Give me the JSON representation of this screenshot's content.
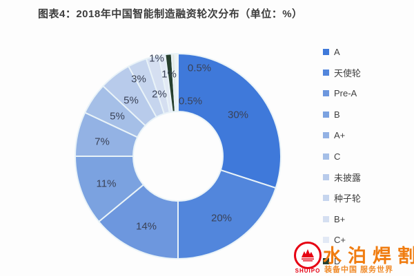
{
  "title": "图表4：2018年中国智能制造融资轮次分布（单位：%）",
  "chart_data": {
    "type": "pie",
    "title": "2018年中国智能制造融资轮次分布",
    "unit": "%",
    "donut": true,
    "start_angle_deg": 0,
    "direction": "clockwise",
    "legend_position": "right",
    "slices": [
      {
        "label": "A",
        "value": 30,
        "display": "30%",
        "color": "#3f79da",
        "label_x": 345,
        "label_y": 167
      },
      {
        "label": "天使轮",
        "value": 20,
        "display": "20%",
        "color": "#5286dc",
        "label_x": 321,
        "label_y": 317
      },
      {
        "label": "Pre-A",
        "value": 14,
        "display": "14%",
        "color": "#6d97de",
        "label_x": 212,
        "label_y": 329
      },
      {
        "label": "B",
        "value": 11,
        "display": "11%",
        "color": "#7ba2e0",
        "label_x": 154,
        "label_y": 267
      },
      {
        "label": "A+",
        "value": 7,
        "display": "7%",
        "color": "#93b2e4",
        "label_x": 148,
        "label_y": 206
      },
      {
        "label": "C",
        "value": 5,
        "display": "5%",
        "color": "#a5bfe7",
        "label_x": 170,
        "label_y": 169
      },
      {
        "label": "未披露",
        "value": 5,
        "display": "5%",
        "color": "#b8cbeb",
        "label_x": 190,
        "label_y": 146
      },
      {
        "label": "种子轮",
        "value": 3,
        "display": "3%",
        "color": "#c6d5ee",
        "label_x": 201,
        "label_y": 115
      },
      {
        "label": "B+",
        "value": 2,
        "display": "2%",
        "color": "#d5dff1",
        "label_x": 231,
        "label_y": 137
      },
      {
        "label": "C+",
        "value": 1,
        "display": "1%",
        "color": "#e2e9f5",
        "label_x": 227,
        "label_y": 85
      },
      {
        "label": "D",
        "value": 1,
        "display": "1%",
        "color": "#27402e",
        "label_x": 245,
        "label_y": 108
      },
      {
        "label": "",
        "value": 0.5,
        "display": "0.5%",
        "color": "#e3e8e3",
        "label_x": 289,
        "label_y": 99
      },
      {
        "label": "",
        "value": 0.5,
        "display": "0.5%",
        "color": "#f0f3f0",
        "label_x": 276,
        "label_y": 147
      }
    ]
  },
  "watermark": {
    "brand": "水泊焊割",
    "slogan": "装备中国 服务世界",
    "logo_text": "SHUIPO",
    "brand_color": "#f07c10",
    "logo_color": "#e60012"
  }
}
